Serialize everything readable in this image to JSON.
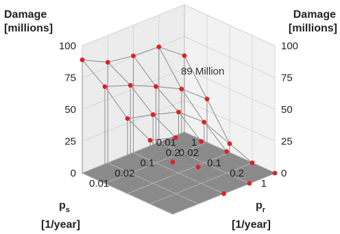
{
  "chart_data": {
    "type": "surface",
    "title": "",
    "z_axis": {
      "label_line1": "Damage",
      "label_line2": "[millions]",
      "ticks": [
        "0",
        "25",
        "50",
        "75",
        "100"
      ],
      "range": [
        0,
        100
      ]
    },
    "ps_axis": {
      "label_main": "p",
      "label_sub": "s",
      "label_unit": "[1/year]",
      "ticks": [
        "0.01",
        "0.02",
        "0.1",
        "0.2",
        "1"
      ],
      "values": [
        0.01,
        0.02,
        0.1,
        0.2,
        1
      ]
    },
    "pr_axis": {
      "label_main": "p",
      "label_sub": "r",
      "label_unit": "[1/year]",
      "ticks": [
        "1",
        "0.2",
        "0.1",
        "0.02",
        "0.01"
      ],
      "values": [
        1,
        0.2,
        0.1,
        0.02,
        0.01
      ]
    },
    "annotation": {
      "text": "89 Million",
      "ps": 0.01,
      "pr": 0.01,
      "value": 89
    },
    "grid": true,
    "point_color": "#e02020",
    "surface": {
      "ps": [
        0.01,
        0.02,
        0.1,
        0.2,
        1
      ],
      "pr": [
        1,
        0.2,
        0.1,
        0.02,
        0.01
      ],
      "damage": [
        [
          60,
          75,
          76,
          79,
          89
        ],
        [
          34,
          50,
          60,
          69,
          76
        ],
        [
          7,
          32,
          48,
          54,
          59
        ],
        [
          0,
          17,
          33,
          44,
          50
        ],
        [
          0,
          0,
          0,
          29,
          41
        ]
      ]
    }
  }
}
